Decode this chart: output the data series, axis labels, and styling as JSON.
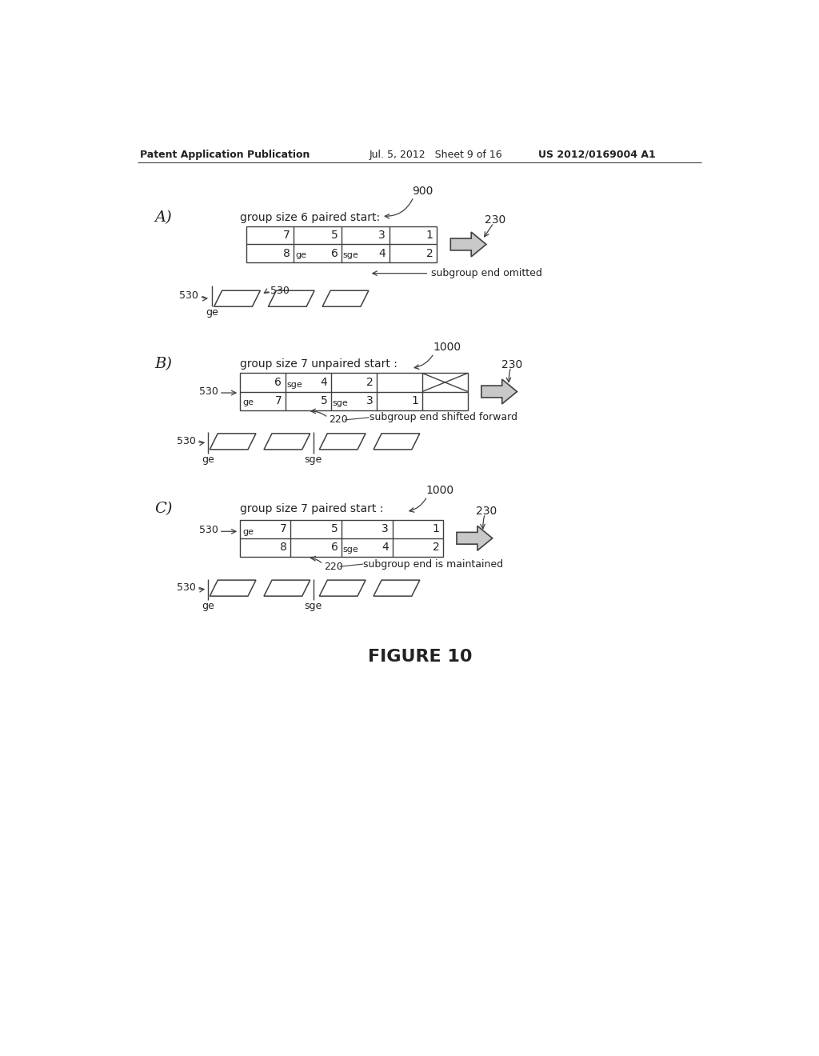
{
  "title_left": "Patent Application Publication",
  "title_mid": "Jul. 5, 2012   Sheet 9 of 16",
  "title_right": "US 2012/0169004 A1",
  "figure_label": "FIGURE 10",
  "bg_color": "#ffffff",
  "line_color": "#404040",
  "text_color": "#222222"
}
